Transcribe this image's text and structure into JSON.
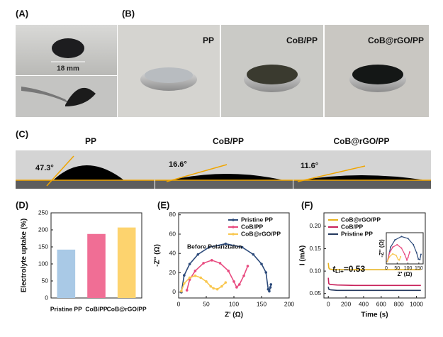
{
  "photos": {
    "label_a": "(A)",
    "scale": "18 mm",
    "label_b": "(B)",
    "b_titles": [
      "PP",
      "CoB/PP",
      "CoB@rGO/PP"
    ],
    "label_c": "(C)",
    "c_titles": [
      "PP",
      "CoB/PP",
      "CoB@rGO/PP"
    ],
    "angles": [
      "47.3°",
      "16.6°",
      "11.6°"
    ]
  },
  "chart_data": [
    {
      "panel": "(D)",
      "type": "bar",
      "ylabel": "Electrolyte uptake (%)",
      "categories": [
        "Pristine PP",
        "CoB/PP",
        "CoB@rGO/PP"
      ],
      "values": [
        142,
        188,
        207
      ],
      "colors": [
        "#a9c9e6",
        "#f06e95",
        "#fdd36e"
      ],
      "ylim": [
        0,
        250
      ],
      "yticks": [
        0,
        50,
        100,
        150,
        200,
        250
      ]
    },
    {
      "panel": "(E)",
      "type": "line",
      "xlabel": "Z' (Ω)",
      "ylabel": "-Z'' (Ω)",
      "annotation": "Before Polariztaion",
      "markers": true,
      "xlim": [
        0,
        200
      ],
      "xticks": [
        0,
        50,
        100,
        150,
        200
      ],
      "ylim": [
        -6,
        82
      ],
      "yticks": [
        0,
        20,
        40,
        60,
        80
      ],
      "legend": "upper right",
      "series": [
        {
          "name": "Pristine PP",
          "color": "#2c4a7a",
          "x": [
            5,
            10,
            20,
            35,
            55,
            85,
            115,
            135,
            150,
            158,
            162,
            164,
            166,
            167
          ],
          "values": [
            0,
            17.4,
            29.1,
            39,
            46.4,
            50,
            46.4,
            39,
            29.1,
            20.4,
            3,
            1,
            5,
            8
          ]
        },
        {
          "name": "CoB/PP",
          "color": "#e84a7f",
          "x": [
            15,
            20,
            30,
            45,
            60,
            75,
            90,
            100,
            105,
            110,
            118,
            125
          ],
          "values": [
            2,
            13,
            22,
            30,
            33,
            30,
            22,
            11,
            5,
            8,
            17,
            27
          ]
        },
        {
          "name": "CoB@rGO/PP",
          "color": "#f9c74f",
          "x": [
            5,
            10,
            20,
            30,
            40,
            50,
            58,
            63,
            70,
            78,
            85
          ],
          "values": [
            1,
            9,
            15,
            17,
            15,
            11,
            6,
            4,
            3,
            6,
            10
          ]
        }
      ]
    },
    {
      "panel": "(F)",
      "type": "line",
      "xlabel": "Time (s)",
      "ylabel": "I (mA)",
      "annotation": {
        "t": "t",
        "sub": "Li+",
        "rest": "=0.53"
      },
      "xlim": [
        -50,
        1100
      ],
      "xticks": [
        0,
        200,
        400,
        600,
        800,
        1000
      ],
      "ylim": [
        0.04,
        0.23
      ],
      "yticks": [
        0.05,
        {
          "value": 0.1,
          "label": "0.10"
        },
        0.15,
        {
          "value": 0.2,
          "label": "0.20"
        }
      ],
      "legend": "upper left",
      "series": [
        {
          "name": "CoB@rGO/PP",
          "color": "#e8b21c",
          "x": [
            0,
            5,
            10,
            30,
            100,
            300,
            600,
            1050
          ],
          "values": [
            0.118,
            0.108,
            0.105,
            0.104,
            0.103,
            0.103,
            0.103,
            0.103
          ]
        },
        {
          "name": "CoB/PP",
          "color": "#c8205a",
          "x": [
            0,
            5,
            10,
            30,
            100,
            300,
            600,
            1050
          ],
          "values": [
            0.085,
            0.073,
            0.071,
            0.07,
            0.069,
            0.068,
            0.068,
            0.068
          ]
        },
        {
          "name": "Pristine PP",
          "color": "#24385e",
          "x": [
            0,
            5,
            10,
            30,
            100,
            300,
            600,
            1050
          ],
          "values": [
            0.065,
            0.06,
            0.059,
            0.058,
            0.057,
            0.057,
            0.057,
            0.057
          ]
        }
      ],
      "inset": {
        "xlabel": "Z' (Ω)",
        "ylabel": "-Z'' (Ω)",
        "xlim": [
          0,
          170
        ],
        "xticks": [
          0,
          50,
          100,
          150
        ],
        "ylim": [
          -5,
          60
        ],
        "series": [
          {
            "color": "#2c4a7a",
            "x": [
              5,
              20,
              40,
              70,
              100,
              125,
              140,
              148,
              155,
              160
            ],
            "values": [
              0,
              30,
              45,
              52,
              48,
              35,
              18,
              5,
              4,
              15
            ]
          },
          {
            "color": "#e84a7f",
            "x": [
              5,
              15,
              30,
              50,
              70,
              85,
              95,
              100,
              108
            ],
            "values": [
              0,
              18,
              30,
              35,
              28,
              15,
              3,
              8,
              20
            ]
          },
          {
            "color": "#f9c74f",
            "x": [
              5,
              15,
              30,
              45,
              55,
              60,
              66
            ],
            "values": [
              0,
              10,
              16,
              13,
              4,
              3,
              10
            ]
          }
        ]
      }
    }
  ]
}
